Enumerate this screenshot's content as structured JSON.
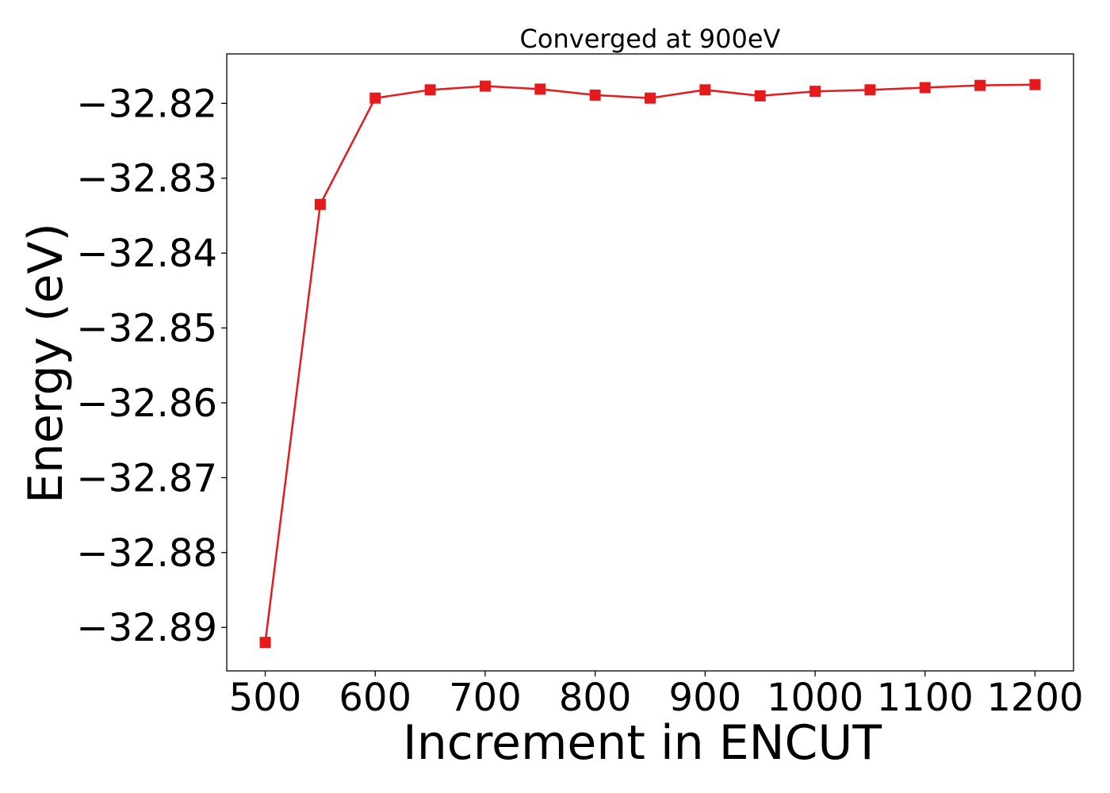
{
  "chart_data": {
    "type": "line",
    "title": "Converged at 900eV",
    "xlabel": "Increment in ENCUT",
    "ylabel": "Energy (eV)",
    "x": [
      500,
      550,
      600,
      650,
      700,
      750,
      800,
      850,
      900,
      950,
      1000,
      1050,
      1100,
      1150,
      1200
    ],
    "x_ticks": [
      500,
      600,
      700,
      800,
      900,
      1000,
      1100,
      1200
    ],
    "x_tick_labels": [
      "500",
      "600",
      "700",
      "800",
      "900",
      "1000",
      "1100",
      "1200"
    ],
    "y_ticks": [
      -32.82,
      -32.83,
      -32.84,
      -32.85,
      -32.86,
      -32.87,
      -32.88,
      -32.89
    ],
    "y_tick_labels": [
      "−32.82",
      "−32.83",
      "−32.84",
      "−32.85",
      "−32.86",
      "−32.87",
      "−32.88",
      "−32.89"
    ],
    "xlim": [
      465,
      1235
    ],
    "ylim": [
      -32.8958,
      -32.8134
    ],
    "grid": false,
    "series": [
      {
        "color": "#e41a1c",
        "marker": "square",
        "values": [
          -32.892,
          -32.8335,
          -32.8193,
          -32.8182,
          -32.8177,
          -32.8181,
          -32.8189,
          -32.8193,
          -32.8182,
          -32.819,
          -32.8184,
          -32.8182,
          -32.8179,
          -32.8176,
          -32.8175
        ]
      }
    ]
  }
}
